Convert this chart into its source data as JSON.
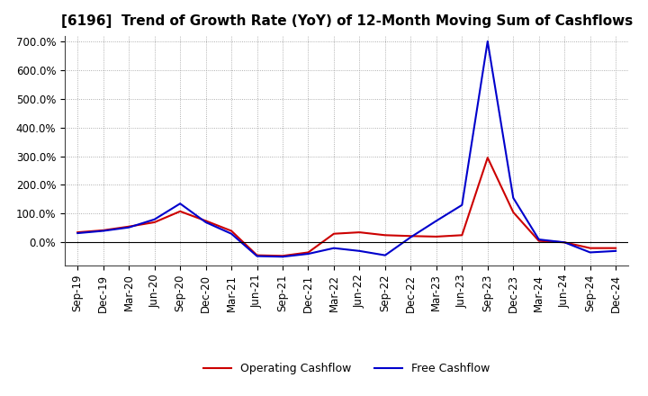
{
  "title": "[6196]  Trend of Growth Rate (YoY) of 12-Month Moving Sum of Cashflows",
  "ylim": [
    -80,
    720
  ],
  "yticks": [
    0,
    100,
    200,
    300,
    400,
    500,
    600,
    700
  ],
  "ytick_labels": [
    "0.0%",
    "100.0%",
    "200.0%",
    "300.0%",
    "400.0%",
    "500.0%",
    "600.0%",
    "700.0%"
  ],
  "background_color": "#ffffff",
  "grid_color": "#999999",
  "x_labels": [
    "Sep-19",
    "Dec-19",
    "Mar-20",
    "Jun-20",
    "Sep-20",
    "Dec-20",
    "Mar-21",
    "Jun-21",
    "Sep-21",
    "Dec-21",
    "Mar-22",
    "Jun-22",
    "Sep-22",
    "Dec-22",
    "Mar-23",
    "Jun-23",
    "Sep-23",
    "Dec-23",
    "Mar-24",
    "Jun-24",
    "Sep-24",
    "Dec-24"
  ],
  "operating_cashflow": [
    35,
    42,
    55,
    70,
    108,
    75,
    40,
    -45,
    -47,
    -35,
    30,
    35,
    25,
    22,
    20,
    25,
    295,
    105,
    5,
    0,
    -20,
    -20
  ],
  "free_cashflow": [
    32,
    40,
    52,
    80,
    135,
    70,
    30,
    -48,
    -50,
    -40,
    -20,
    -30,
    -45,
    18,
    75,
    130,
    700,
    155,
    10,
    0,
    -35,
    -30
  ],
  "op_color": "#cc0000",
  "free_color": "#0000cc",
  "legend_op": "Operating Cashflow",
  "legend_free": "Free Cashflow",
  "title_fontsize": 11,
  "tick_fontsize": 8.5,
  "legend_fontsize": 9
}
